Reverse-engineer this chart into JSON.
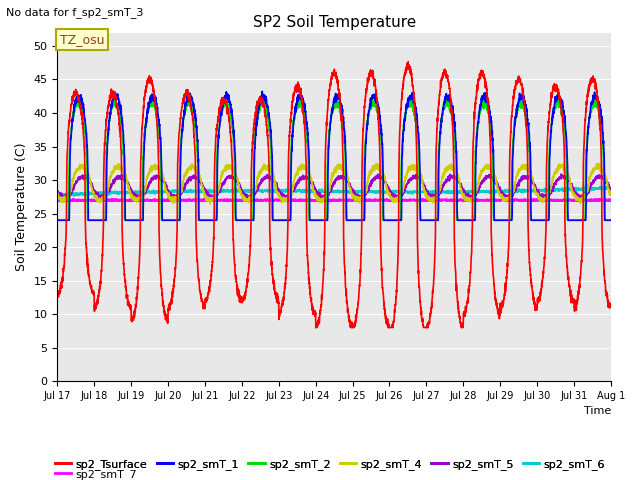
{
  "title": "SP2 Soil Temperature",
  "subtitle": "No data for f_sp2_smT_3",
  "ylabel": "Soil Temperature (C)",
  "xlabel": "Time",
  "tz_label": "TZ_osu",
  "ylim": [
    0,
    52
  ],
  "yticks": [
    0,
    5,
    10,
    15,
    20,
    25,
    30,
    35,
    40,
    45,
    50
  ],
  "background_color": "#e8e8e8",
  "series": {
    "sp2_Tsurface": {
      "color": "#ff0000",
      "lw": 1.2
    },
    "sp2_smT_1": {
      "color": "#0000ff",
      "lw": 1.2
    },
    "sp2_smT_2": {
      "color": "#00dd00",
      "lw": 1.2
    },
    "sp2_smT_4": {
      "color": "#cccc00",
      "lw": 1.2
    },
    "sp2_smT_5": {
      "color": "#9900cc",
      "lw": 1.2
    },
    "sp2_smT_6": {
      "color": "#00cccc",
      "lw": 1.2
    },
    "sp2_smT_7": {
      "color": "#ff00ff",
      "lw": 1.5
    }
  },
  "legend_colors": {
    "sp2_Tsurface": "#ff0000",
    "sp2_smT_1": "#0000ff",
    "sp2_smT_2": "#00dd00",
    "sp2_smT_4": "#cccc00",
    "sp2_smT_5": "#9900cc",
    "sp2_smT_6": "#00cccc",
    "sp2_smT_7": "#ff00ff"
  },
  "n_points": 3600,
  "days": 15,
  "start_day": 17
}
